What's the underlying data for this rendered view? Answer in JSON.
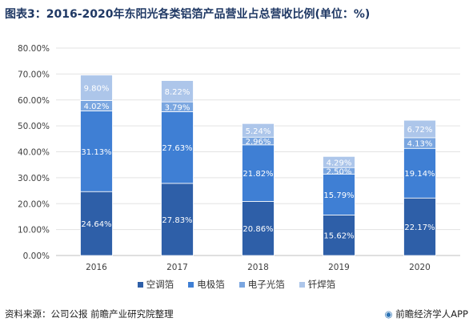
{
  "title": "图表3：2016-2020年东阳光各类铝箔产品营业占总营收比例(单位：%)",
  "footer": {
    "source": "资料来源：公司公报 前瞻产业研究院整理",
    "brand": "前瞻经济学人APP",
    "brand_icon": "qianzhan-logo-icon"
  },
  "chart_data": {
    "type": "bar",
    "stacked": true,
    "categories": [
      "2016",
      "2017",
      "2018",
      "2019",
      "2020"
    ],
    "ylim": [
      0,
      80
    ],
    "yticks": [
      "0.00%",
      "10.00%",
      "20.00%",
      "30.00%",
      "40.00%",
      "50.00%",
      "60.00%",
      "70.00%",
      "80.00%"
    ],
    "grid": true,
    "legend_position": "bottom",
    "series": [
      {
        "name": "空调箔",
        "color": "#2e5fa8",
        "values": [
          24.64,
          27.83,
          20.86,
          15.62,
          22.17
        ],
        "labels": [
          "24.64%",
          "27.83%",
          "20.86%",
          "15.62%",
          "22.17%"
        ]
      },
      {
        "name": "电极箔",
        "color": "#3f7fd4",
        "values": [
          31.13,
          27.63,
          21.82,
          15.79,
          19.14
        ],
        "labels": [
          "31.13%",
          "27.63%",
          "21.82%",
          "15.79%",
          "19.14%"
        ]
      },
      {
        "name": "电子光箔",
        "color": "#7aa6e0",
        "values": [
          4.02,
          3.79,
          2.96,
          2.5,
          4.13
        ],
        "labels": [
          "4.02%",
          "3.79%",
          "2.96%",
          "2.50%",
          "4.13%"
        ]
      },
      {
        "name": "钎焊箔",
        "color": "#adc6ea",
        "values": [
          9.8,
          8.22,
          5.24,
          4.29,
          6.72
        ],
        "labels": [
          "9.80%",
          "8.22%",
          "5.24%",
          "4.29%",
          "6.72%"
        ]
      }
    ]
  }
}
